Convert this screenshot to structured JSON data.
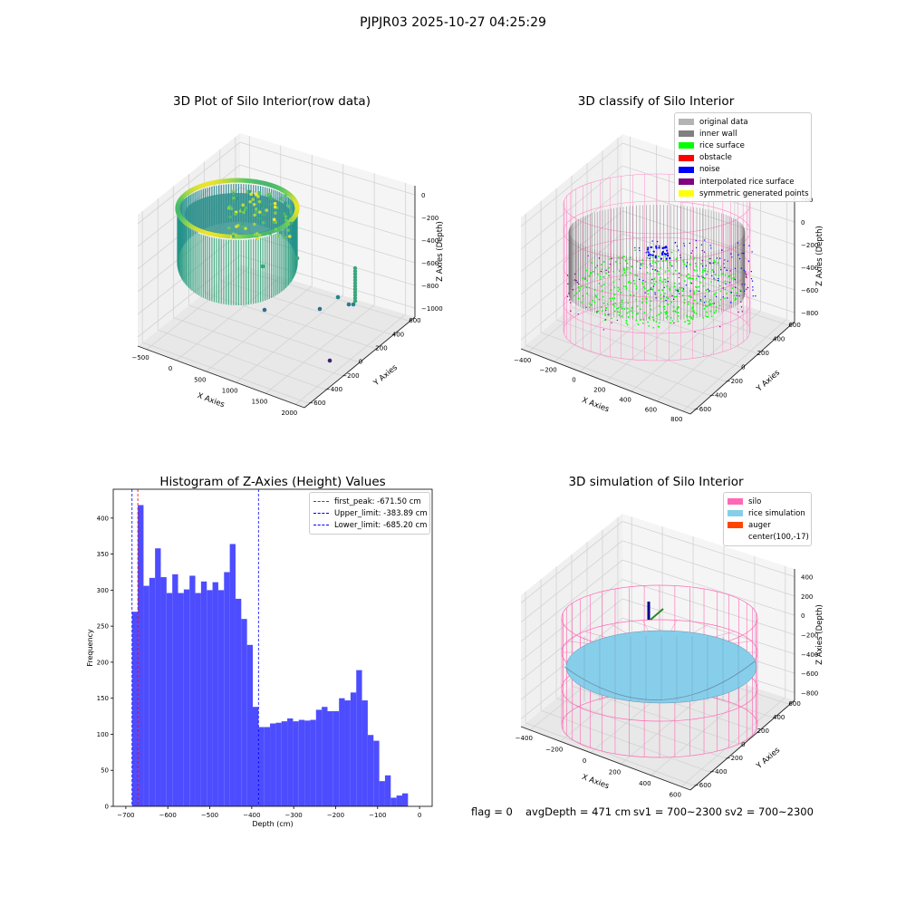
{
  "suptitle": "PJPJR03 2025-10-27 04:25:29",
  "footer": {
    "flag": "flag = 0",
    "avgdepth": "avgDepth = 471 cm",
    "sv1": "sv1 = 700~2300",
    "sv2": "sv2 = 700~2300"
  },
  "chart_data": [
    {
      "type": "scatter",
      "title": "3D Plot of Silo Interior(row data)",
      "xlabel": "X Axies",
      "ylabel": "Y Axies",
      "zlabel": "Z Axies (Depth)",
      "x_ticks": [
        "−500",
        "0",
        "500",
        "1000",
        "1500",
        "2000"
      ],
      "y_ticks": [
        "−600",
        "−400",
        "−200",
        "0",
        "200",
        "400",
        "600"
      ],
      "z_ticks": [
        "−1000",
        "−800",
        "−600",
        "−400",
        "−200",
        "0"
      ],
      "colormap": "viridis"
    },
    {
      "type": "scatter",
      "title": "3D classify of Silo Interior",
      "xlabel": "X Axies",
      "ylabel": "Y Axies",
      "zlabel": "Z Axies (Depth)",
      "x_ticks": [
        "−400",
        "−200",
        "0",
        "200",
        "400",
        "600",
        "800"
      ],
      "y_ticks": [
        "−600",
        "−400",
        "−200",
        "0",
        "200",
        "400",
        "600"
      ],
      "z_ticks": [
        "−800",
        "−600",
        "−400",
        "−200",
        "0",
        "200"
      ],
      "legend": [
        {
          "label": "original data",
          "color": "#b3b3b3"
        },
        {
          "label": "inner wall",
          "color": "#808080"
        },
        {
          "label": "rice surface",
          "color": "#00ff00"
        },
        {
          "label": "obstacle",
          "color": "#ff0000"
        },
        {
          "label": "noise",
          "color": "#0000ff"
        },
        {
          "label": "interpolated rice surface",
          "color": "#800080"
        },
        {
          "label": "symmetric generated points",
          "color": "#ffff00"
        }
      ]
    },
    {
      "type": "bar",
      "title": "Histogram of Z-Axies (Height) Values",
      "xlabel": "Depth (cm)",
      "ylabel": "Frequency",
      "xlim": [
        -730,
        30
      ],
      "ylim": [
        0,
        440
      ],
      "x_ticks": [
        -700,
        -600,
        -500,
        -400,
        -300,
        -200,
        -100,
        0
      ],
      "x_tick_labels": [
        "−700",
        "−600",
        "−500",
        "−400",
        "−300",
        "−200",
        "−100",
        "0"
      ],
      "y_ticks": [
        0,
        50,
        100,
        150,
        200,
        250,
        300,
        350,
        400
      ],
      "bin_start": -685.2,
      "bin_width": 13.7,
      "bar_color": "#4d4dff",
      "values": [
        270,
        418,
        306,
        317,
        358,
        318,
        296,
        322,
        296,
        301,
        320,
        296,
        312,
        300,
        311,
        300,
        325,
        364,
        288,
        260,
        224,
        138,
        110,
        110,
        115,
        116,
        118,
        122,
        118,
        120,
        119,
        120,
        134,
        138,
        132,
        132,
        150,
        147,
        158,
        189,
        147,
        99,
        91,
        35,
        43,
        12,
        15,
        18
      ],
      "vlines": [
        {
          "label": "first_peak: -671.50 cm",
          "x": -671.5,
          "color": "#ff0000"
        },
        {
          "label": "Upper_limit: -383.89 cm",
          "x": -383.89,
          "color": "#0000ff"
        },
        {
          "label": "Lower_limit: -685.20 cm",
          "x": -685.2,
          "color": "#0000ff"
        }
      ]
    },
    {
      "type": "scatter",
      "title": "3D simulation of Silo Interior",
      "xlabel": "X Axies",
      "ylabel": "Y Axies",
      "zlabel": "Z Axies (Depth)",
      "x_ticks": [
        "−400",
        "−200",
        "0",
        "200",
        "400",
        "600"
      ],
      "y_ticks": [
        "−600",
        "−400",
        "−200",
        "0",
        "200",
        "400",
        "600"
      ],
      "z_ticks": [
        "−800",
        "−600",
        "−400",
        "−200",
        "0",
        "200",
        "400"
      ],
      "legend": [
        {
          "label": "silo",
          "color": "#ff69b4"
        },
        {
          "label": "rice simulation",
          "color": "#87ceeb"
        },
        {
          "label": "auger",
          "color": "#ff4500"
        },
        {
          "label": "center(100,-17)",
          "color": ""
        }
      ]
    }
  ]
}
